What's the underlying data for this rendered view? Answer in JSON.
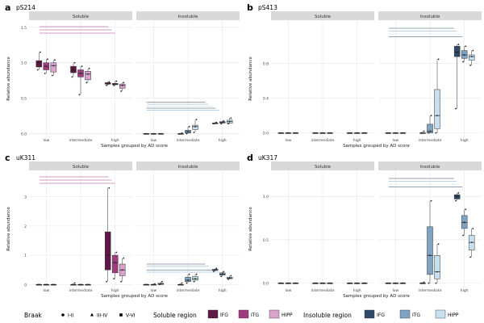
{
  "xlabel_shared": "Samples grouped by AD score",
  "strip_labels": [
    "Soluble",
    "Insoluble"
  ],
  "categories": [
    "low",
    "intermediate",
    "high"
  ],
  "regions": [
    "IFG",
    "ITG",
    "HIPP"
  ],
  "colors": {
    "soluble": [
      "#5e1746",
      "#a23a80",
      "#d9a3cc"
    ],
    "insoluble": [
      "#2f4a66",
      "#7fa3c2",
      "#c6e0ef"
    ],
    "grid": "#e6e6e6",
    "strip_bg": "#d9d9d9"
  },
  "chart_data": [
    {
      "type": "box",
      "panel": "a",
      "title": "pS214",
      "ylabel": "Relative abundance",
      "xlabel": "Samples grouped by AD score",
      "ylim": [
        -0.05,
        1.6
      ],
      "yticks": [
        0,
        0.5,
        1.0,
        1.5
      ],
      "ytick_labels": [
        "0.0",
        "0.5",
        "1.0",
        "1.5"
      ],
      "facets": {
        "Soluble": [
          [
            [
              0.9,
              0.94,
              1.0,
              1.03,
              1.15
            ],
            [
              0.85,
              0.9,
              0.95,
              1.0,
              1.05
            ],
            [
              0.82,
              0.87,
              0.96,
              1.0,
              1.04
            ]
          ],
          [
            [
              0.8,
              0.86,
              0.9,
              0.95,
              1.0
            ],
            [
              0.55,
              0.8,
              0.85,
              0.9,
              0.95
            ],
            [
              0.72,
              0.76,
              0.84,
              0.88,
              0.92
            ]
          ],
          [
            [
              0.68,
              0.7,
              0.7,
              0.72,
              0.73
            ],
            [
              0.68,
              0.69,
              0.7,
              0.71,
              0.74
            ],
            [
              0.6,
              0.64,
              0.68,
              0.7,
              0.72
            ]
          ]
        ],
        "Insoluble": [
          [
            [
              0.0,
              0.0,
              0.0,
              0.0,
              0.0
            ],
            [
              0.0,
              0.0,
              0.0,
              0.0,
              0.0
            ],
            [
              0.0,
              0.0,
              0.0,
              0.0,
              0.0
            ]
          ],
          [
            [
              0.0,
              0.0,
              0.0,
              0.0,
              0.01
            ],
            [
              0.0,
              0.01,
              0.03,
              0.05,
              0.1
            ],
            [
              0.02,
              0.06,
              0.1,
              0.12,
              0.2
            ]
          ],
          [
            [
              0.14,
              0.14,
              0.15,
              0.15,
              0.16
            ],
            [
              0.14,
              0.15,
              0.16,
              0.17,
              0.18
            ],
            [
              0.14,
              0.15,
              0.17,
              0.19,
              0.22
            ]
          ]
        ]
      }
    },
    {
      "type": "box",
      "panel": "b",
      "title": "pS413",
      "ylabel": "Relative abundance",
      "xlabel": "Samples grouped by AD score",
      "ylim": [
        -0.05,
        1.3
      ],
      "yticks": [
        0,
        0.4,
        0.8
      ],
      "ytick_labels": [
        "0.0",
        "0.4",
        "0.8"
      ],
      "facets": {
        "Soluble": [
          [
            [
              0,
              0,
              0,
              0,
              0
            ],
            [
              0,
              0,
              0,
              0,
              0
            ],
            [
              0,
              0,
              0,
              0,
              0
            ]
          ],
          [
            [
              0,
              0,
              0,
              0,
              0
            ],
            [
              0,
              0,
              0,
              0,
              0
            ],
            [
              0,
              0,
              0,
              0,
              0
            ]
          ],
          [
            [
              0,
              0,
              0,
              0,
              0
            ],
            [
              0,
              0,
              0,
              0,
              0
            ],
            [
              0,
              0,
              0,
              0,
              0
            ]
          ]
        ],
        "Insoluble": [
          [
            [
              0,
              0,
              0,
              0,
              0
            ],
            [
              0,
              0,
              0,
              0,
              0
            ],
            [
              0,
              0,
              0,
              0,
              0
            ]
          ],
          [
            [
              0,
              0,
              0,
              0,
              0.02
            ],
            [
              0,
              0.0,
              0.02,
              0.1,
              0.2
            ],
            [
              0,
              0.05,
              0.2,
              0.5,
              0.85
            ]
          ],
          [
            [
              0.28,
              0.88,
              0.93,
              1.0,
              1.02
            ],
            [
              0.82,
              0.86,
              0.9,
              0.95,
              1.0
            ],
            [
              0.78,
              0.84,
              0.88,
              0.9,
              0.95
            ]
          ]
        ]
      }
    },
    {
      "type": "box",
      "panel": "c",
      "title": "uK311",
      "ylabel": "Relative abundance",
      "xlabel": "Samples grouped by AD score",
      "ylim": [
        -0.1,
        3.9
      ],
      "yticks": [
        0,
        1,
        2,
        3
      ],
      "ytick_labels": [
        "0",
        "1",
        "2",
        "3"
      ],
      "facets": {
        "Soluble": [
          [
            [
              0,
              0,
              0,
              0,
              0
            ],
            [
              0,
              0,
              0,
              0,
              0
            ],
            [
              0,
              0,
              0,
              0,
              0
            ]
          ],
          [
            [
              0,
              0,
              0,
              0,
              0.05
            ],
            [
              0,
              0,
              0,
              0,
              0
            ],
            [
              0,
              0,
              0,
              0,
              0
            ]
          ],
          [
            [
              0.1,
              0.5,
              1.0,
              1.8,
              3.3
            ],
            [
              0.2,
              0.4,
              0.75,
              1.0,
              1.1
            ],
            [
              0.1,
              0.3,
              0.5,
              0.7,
              0.9
            ]
          ]
        ],
        "Insoluble": [
          [
            [
              0,
              0,
              0,
              0,
              0
            ],
            [
              0,
              0,
              0,
              0,
              0.02
            ],
            [
              0,
              0,
              0.02,
              0.05,
              0.1
            ]
          ],
          [
            [
              0,
              0,
              0,
              0,
              0.05
            ],
            [
              0.05,
              0.1,
              0.15,
              0.25,
              0.35
            ],
            [
              0.1,
              0.15,
              0.2,
              0.28,
              0.35
            ]
          ],
          [
            [
              0.45,
              0.48,
              0.5,
              0.52,
              0.55
            ],
            [
              0.28,
              0.32,
              0.36,
              0.4,
              0.44
            ],
            [
              0.18,
              0.2,
              0.22,
              0.25,
              0.3
            ]
          ]
        ]
      }
    },
    {
      "type": "box",
      "panel": "d",
      "title": "uK317",
      "ylabel": "Relative abundance",
      "xlabel": "Samples grouped by AD score",
      "ylim": [
        -0.05,
        1.3
      ],
      "yticks": [
        0,
        0.5,
        1.0
      ],
      "ytick_labels": [
        "0.0",
        "0.5",
        "1.0"
      ],
      "facets": {
        "Soluble": [
          [
            [
              0,
              0,
              0,
              0,
              0
            ],
            [
              0,
              0,
              0,
              0,
              0
            ],
            [
              0,
              0,
              0,
              0,
              0
            ]
          ],
          [
            [
              0,
              0,
              0,
              0,
              0
            ],
            [
              0,
              0,
              0,
              0,
              0
            ],
            [
              0,
              0,
              0,
              0,
              0
            ]
          ],
          [
            [
              0,
              0,
              0,
              0,
              0
            ],
            [
              0,
              0,
              0,
              0,
              0
            ],
            [
              0,
              0,
              0,
              0,
              0
            ]
          ]
        ],
        "Insoluble": [
          [
            [
              0,
              0,
              0,
              0,
              0
            ],
            [
              0,
              0,
              0,
              0,
              0
            ],
            [
              0,
              0,
              0,
              0,
              0
            ]
          ],
          [
            [
              0,
              0,
              0,
              0,
              0.01
            ],
            [
              0,
              0.1,
              0.32,
              0.65,
              0.95
            ],
            [
              0,
              0.05,
              0.13,
              0.32,
              0.45
            ]
          ],
          [
            [
              0.95,
              0.97,
              1.0,
              1.02,
              1.04
            ],
            [
              0.55,
              0.63,
              0.7,
              0.78,
              0.85
            ],
            [
              0.3,
              0.38,
              0.47,
              0.55,
              0.63
            ]
          ]
        ]
      }
    }
  ],
  "legend": {
    "braak_title": "Braak",
    "braak_items": [
      "I-II",
      "III-IV",
      "V-VI"
    ],
    "soluble_title": "Soluble region",
    "insoluble_title": "Insoluble region",
    "region_items": [
      "IFG",
      "ITG",
      "HIPP"
    ]
  }
}
